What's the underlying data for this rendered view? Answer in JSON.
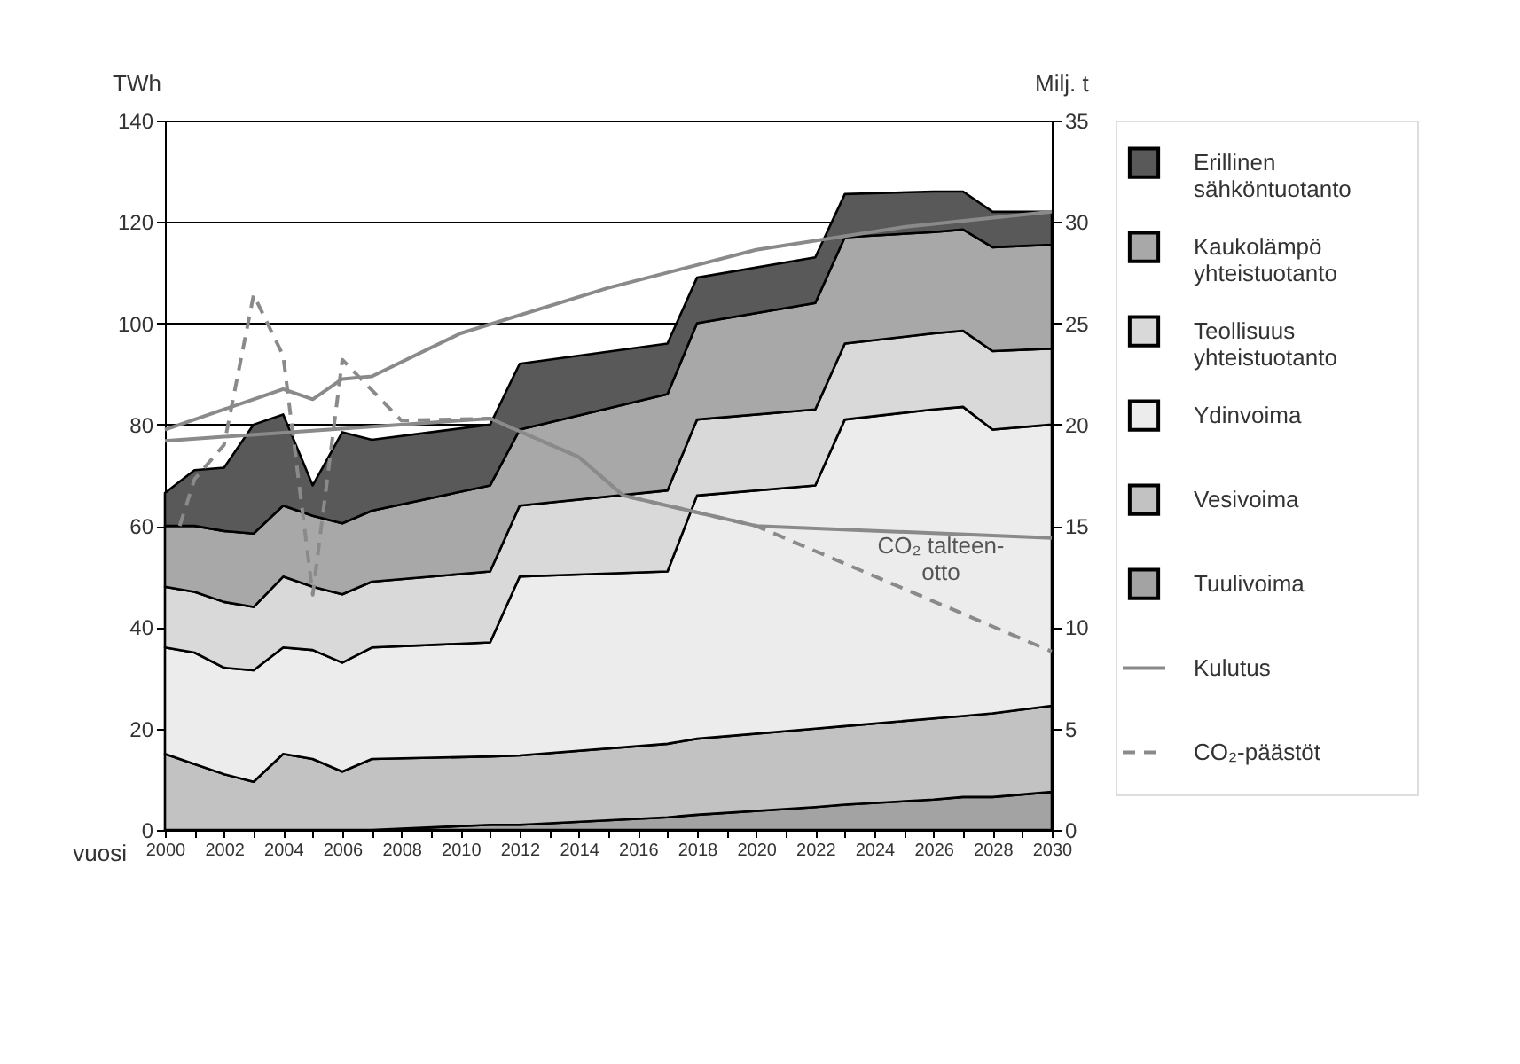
{
  "chart_data": {
    "type": "area",
    "stacked": true,
    "xlabel": "vuosi",
    "ylabel": "TWh",
    "y2label": "Milj. t",
    "x": [
      2000,
      2001,
      2002,
      2003,
      2004,
      2005,
      2006,
      2007,
      2011,
      2012,
      2017,
      2018,
      2022,
      2023,
      2026,
      2027,
      2028,
      2030
    ],
    "xlim": [
      2000,
      2030
    ],
    "xticks": [
      2000,
      {
        "value": 2001,
        "label": null
      },
      2002,
      {
        "value": 2003,
        "label": null
      },
      2004,
      {
        "value": 2005,
        "label": null
      },
      2006,
      {
        "value": 2007,
        "label": null
      },
      2008,
      {
        "value": 2009,
        "label": null
      },
      2010,
      {
        "value": 2011,
        "label": null
      },
      2012,
      {
        "value": 2013,
        "label": null
      },
      2014,
      {
        "value": 2015,
        "label": null
      },
      2016,
      {
        "value": 2017,
        "label": null
      },
      2018,
      {
        "value": 2019,
        "label": null
      },
      2020,
      {
        "value": 2021,
        "label": null
      },
      2022,
      {
        "value": 2023,
        "label": null
      },
      2024,
      {
        "value": 2025,
        "label": null
      },
      2026,
      {
        "value": 2027,
        "label": null
      },
      2028,
      {
        "value": 2029,
        "label": null
      },
      2030
    ],
    "ylim": [
      0,
      140
    ],
    "yticks": [
      0,
      20,
      40,
      60,
      80,
      100,
      120,
      140
    ],
    "y2lim": [
      0,
      35
    ],
    "y2ticks": [
      0,
      5,
      10,
      15,
      20,
      25,
      30,
      35
    ],
    "grid": "y",
    "legend": "right",
    "series": [
      {
        "name": "Tuulivoima",
        "color": "#a3a3a3",
        "values": [
          0,
          0,
          0,
          0,
          0,
          0,
          0,
          0,
          1,
          1,
          2.5,
          3,
          4.5,
          5,
          6,
          6.5,
          6.5,
          7.5
        ]
      },
      {
        "name": "Vesivoima",
        "color": "#c2c2c2",
        "values": [
          15,
          13,
          11,
          9.5,
          15,
          14,
          11.5,
          14,
          13.5,
          13.7,
          14.5,
          15,
          15.5,
          15.5,
          16,
          16,
          16.5,
          17
        ]
      },
      {
        "name": "Ydinvoima",
        "color": "#ececec",
        "values": [
          21,
          22,
          21,
          22,
          21,
          21.5,
          21.5,
          22,
          22.5,
          35.3,
          34,
          48,
          48,
          60.5,
          61,
          61,
          56,
          55.5
        ]
      },
      {
        "name": "Teollisuus yhteistuotanto",
        "color": "#d9d9d9",
        "values": [
          12,
          12,
          13,
          12.5,
          14,
          12.5,
          13.5,
          13,
          14,
          14,
          16,
          15,
          15,
          15,
          15,
          15,
          15.5,
          15
        ]
      },
      {
        "name": "Kaukolämpö yhteistuotanto",
        "color": "#a8a8a8",
        "values": [
          12,
          13,
          14,
          14.5,
          14,
          14,
          14,
          14,
          17,
          15,
          19,
          19,
          21,
          21,
          20,
          20,
          20.5,
          20.5
        ]
      },
      {
        "name": "Erillinen sähköntuotanto",
        "color": "#595959",
        "values": [
          6.5,
          11,
          12.5,
          21.5,
          18,
          6,
          18,
          14,
          12,
          13,
          10,
          9,
          9,
          8.5,
          8,
          7.5,
          7,
          6.5
        ]
      },
      {
        "name": "Kulutus",
        "type": "line",
        "color": "#8a8a8a",
        "line_style": "solid",
        "x": [
          2000,
          2001,
          2002,
          2003,
          2004,
          2005,
          2006,
          2007,
          2010,
          2015,
          2020,
          2025,
          2030
        ],
        "values": [
          79,
          81,
          83,
          85,
          87,
          85,
          89,
          89.5,
          98,
          107,
          114.5,
          119,
          122
        ]
      },
      {
        "type": "line",
        "axis": "y2",
        "color": "#8a8a8a",
        "line_style": "solid",
        "x": [
          2000,
          2011,
          2014,
          2015.5,
          2020,
          2030
        ],
        "values": [
          19.2,
          20.3,
          18.4,
          16.5,
          15,
          14.4
        ]
      },
      {
        "name": "CO₂-päästöt",
        "type": "line",
        "axis": "y2",
        "color": "#8a8a8a",
        "line_style": "dashed",
        "x": [
          2000.5,
          2001,
          2002,
          2003,
          2004,
          2005,
          2006,
          2008,
          2011,
          2014,
          2015.5,
          2020,
          2030
        ],
        "values": [
          15,
          17.3,
          19,
          26.4,
          23.4,
          11.6,
          23.2,
          20.2,
          20.3,
          18.4,
          16.5,
          15,
          8.8
        ]
      }
    ],
    "annotations": [
      "CO₂ talteen-otto"
    ]
  }
}
